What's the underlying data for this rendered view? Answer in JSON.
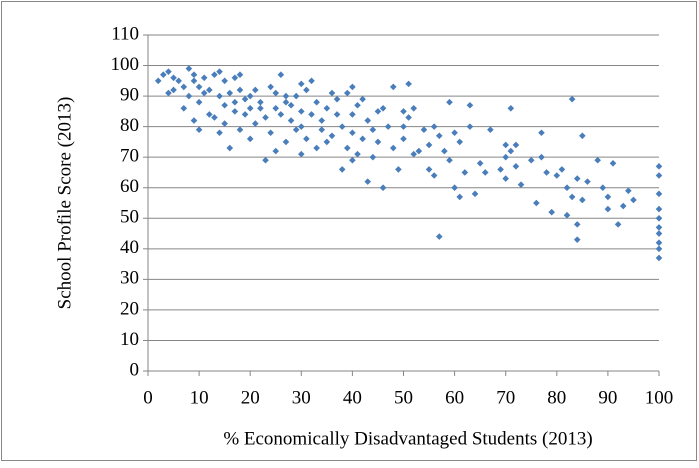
{
  "chart_data": {
    "type": "scatter",
    "x_label": "% Economically Disadvantaged Students (2013)",
    "y_label": "School Profile Score (2013)",
    "color": "#4a7ebb",
    "grid": true,
    "xlim": [
      0,
      100
    ],
    "xticks": [
      0,
      10,
      20,
      30,
      40,
      50,
      60,
      70,
      80,
      90,
      100
    ],
    "ylim": [
      0,
      110
    ],
    "yticks": [
      0,
      10,
      20,
      30,
      40,
      50,
      60,
      70,
      80,
      90,
      100,
      110
    ],
    "x": [
      2,
      3,
      4,
      4,
      5,
      5,
      6,
      7,
      7,
      8,
      8,
      9,
      9,
      9,
      10,
      10,
      10,
      11,
      11,
      12,
      12,
      13,
      13,
      14,
      14,
      14,
      15,
      15,
      15,
      16,
      16,
      17,
      17,
      17,
      18,
      18,
      18,
      19,
      19,
      20,
      20,
      20,
      21,
      21,
      22,
      22,
      23,
      23,
      24,
      24,
      25,
      25,
      25,
      26,
      26,
      27,
      27,
      27,
      28,
      28,
      29,
      29,
      30,
      30,
      30,
      30,
      31,
      31,
      32,
      32,
      33,
      33,
      34,
      34,
      35,
      35,
      36,
      36,
      37,
      37,
      38,
      38,
      39,
      39,
      40,
      40,
      40,
      40,
      41,
      41,
      42,
      42,
      43,
      43,
      44,
      44,
      45,
      45,
      46,
      46,
      47,
      48,
      48,
      49,
      50,
      50,
      50,
      51,
      51,
      52,
      52,
      53,
      54,
      55,
      55,
      56,
      56,
      57,
      57,
      58,
      59,
      59,
      60,
      60,
      61,
      61,
      62,
      63,
      63,
      64,
      65,
      66,
      67,
      69,
      70,
      70,
      70,
      71,
      71,
      72,
      72,
      73,
      75,
      76,
      77,
      77,
      78,
      79,
      80,
      81,
      82,
      82,
      83,
      83,
      84,
      84,
      84,
      85,
      85,
      86,
      88,
      89,
      90,
      90,
      91,
      92,
      93,
      94,
      95,
      100,
      100,
      100,
      100,
      100,
      100,
      100,
      100,
      100,
      100
    ],
    "values": [
      95,
      97,
      98,
      91,
      96,
      92,
      95,
      86,
      93,
      99,
      90,
      97,
      82,
      95,
      93,
      88,
      79,
      96,
      91,
      92,
      84,
      97,
      83,
      98,
      90,
      78,
      95,
      87,
      81,
      73,
      91,
      96,
      88,
      85,
      97,
      79,
      92,
      84,
      89,
      90,
      76,
      86,
      92,
      81,
      86,
      88,
      69,
      83,
      93,
      78,
      91,
      72,
      86,
      97,
      84,
      90,
      75,
      88,
      82,
      87,
      79,
      90,
      94,
      71,
      85,
      80,
      92,
      76,
      95,
      84,
      88,
      73,
      82,
      79,
      86,
      75,
      91,
      77,
      84,
      89,
      80,
      66,
      91,
      73,
      93,
      69,
      84,
      78,
      87,
      71,
      76,
      89,
      62,
      82,
      79,
      70,
      85,
      75,
      86,
      60,
      80,
      93,
      73,
      66,
      85,
      80,
      76,
      94,
      83,
      71,
      86,
      72,
      79,
      74,
      66,
      80,
      64,
      44,
      77,
      72,
      88,
      69,
      78,
      60,
      57,
      75,
      65,
      87,
      80,
      58,
      68,
      65,
      79,
      66,
      63,
      74,
      70,
      86,
      72,
      74,
      67,
      61,
      69,
      55,
      78,
      70,
      65,
      52,
      64,
      66,
      60,
      51,
      89,
      57,
      43,
      63,
      48,
      77,
      56,
      62,
      69,
      60,
      53,
      57,
      68,
      48,
      54,
      59,
      56,
      67,
      64,
      58,
      53,
      50,
      47,
      45,
      42,
      40,
      37
    ]
  }
}
